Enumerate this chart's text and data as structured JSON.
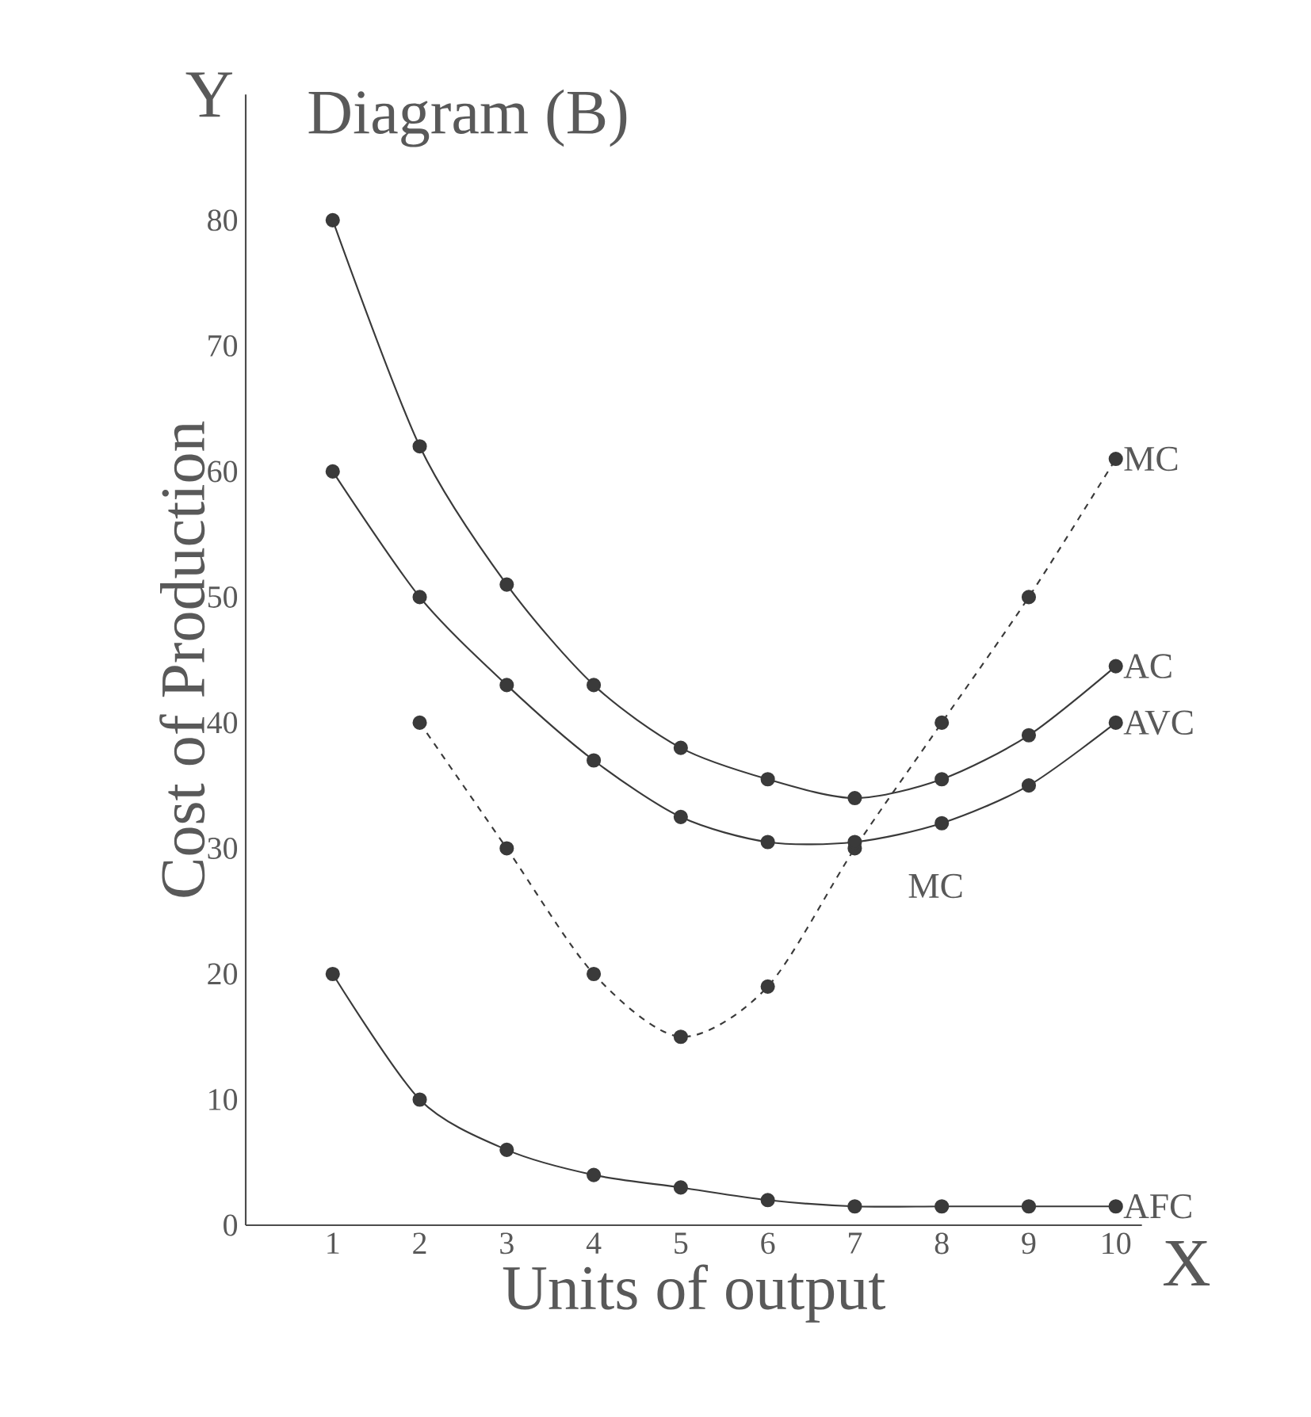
{
  "chart_data": {
    "type": "line",
    "title": "Diagram (B)",
    "xlabel": "Units of output",
    "ylabel": "Cost of Production",
    "x": [
      1,
      2,
      3,
      4,
      5,
      6,
      7,
      8,
      9,
      10
    ],
    "series": [
      {
        "name": "MC",
        "color": "#3a3a3a",
        "line_style": "dashed",
        "x": [
          2,
          3,
          4,
          5,
          6,
          7,
          8,
          9,
          10
        ],
        "values": [
          40,
          30,
          20,
          15,
          19,
          30,
          40,
          50,
          61
        ]
      },
      {
        "name": "AC",
        "color": "#3a3a3a",
        "values": [
          80,
          62,
          51,
          43,
          38,
          35.5,
          34,
          35.5,
          39,
          44.5
        ]
      },
      {
        "name": "AVC",
        "color": "#3a3a3a",
        "values": [
          60,
          50,
          43,
          37,
          32.5,
          30.5,
          30.5,
          32,
          35,
          40
        ]
      },
      {
        "name": "AFC",
        "color": "#3a3a3a",
        "values": [
          20,
          10,
          6,
          4,
          3,
          2,
          1.5,
          1.5,
          1.5,
          1.5
        ]
      }
    ],
    "annotations": [
      "Y",
      "X",
      "MC"
    ],
    "marker": "circle",
    "xlim": [
      0,
      10.3
    ],
    "ylim": [
      0,
      90
    ],
    "xticks": [
      1,
      2,
      3,
      4,
      5,
      6,
      7,
      8,
      9,
      10
    ],
    "yticks": [
      0,
      10,
      20,
      30,
      40,
      50,
      60,
      70,
      80
    ]
  }
}
